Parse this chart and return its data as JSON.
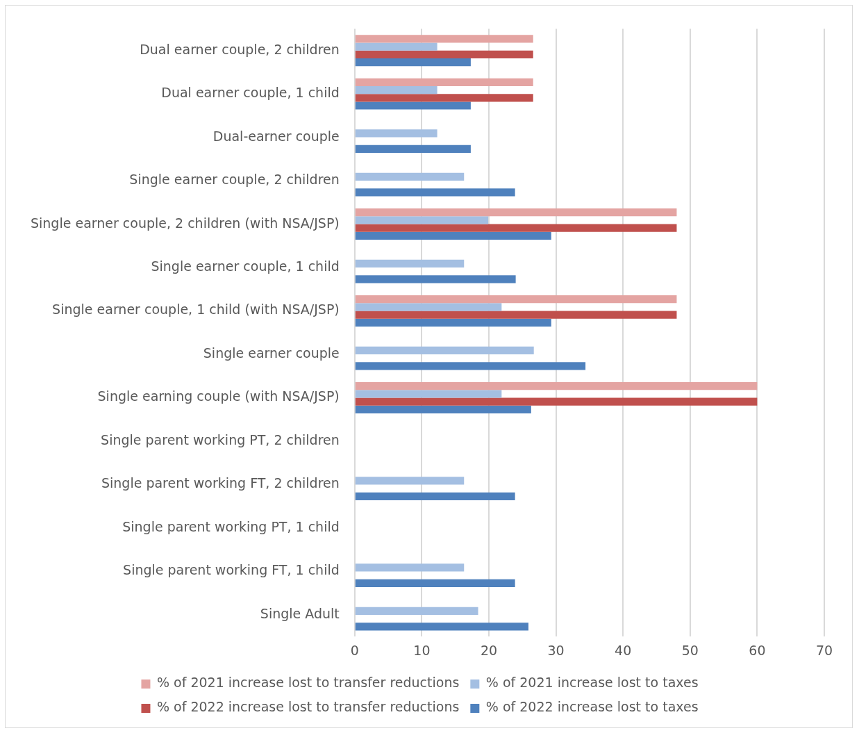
{
  "chart_data": {
    "type": "bar",
    "orientation": "horizontal",
    "categories": [
      "Dual earner couple, 2 children",
      "Dual earner couple, 1 child",
      "Dual-earner couple",
      "Single earner couple, 2 children",
      "Single earner couple, 2 children (with NSA/JSP)",
      "Single earner couple, 1 child",
      "Single earner couple, 1 child (with NSA/JSP)",
      "Single earner couple",
      "Single earning couple (with NSA/JSP)",
      "Single parent working PT, 2 children",
      "Single parent working FT, 2 children",
      "Single parent working PT, 1 child",
      "Single parent working FT, 1 child",
      "Single Adult"
    ],
    "series": [
      {
        "name": "% of 2021 increase lost to transfer reductions",
        "color": "#e4a4a2",
        "values": [
          26.6,
          26.6,
          null,
          null,
          48,
          null,
          48,
          null,
          60,
          null,
          null,
          null,
          null,
          null
        ]
      },
      {
        "name": "% of 2021 increase lost to taxes",
        "color": "#a4bfe2",
        "values": [
          12.3,
          12.3,
          12.3,
          16.3,
          19.9,
          16.3,
          21.9,
          26.7,
          21.9,
          null,
          16.3,
          null,
          16.3,
          18.4
        ]
      },
      {
        "name": "% of 2022 increase lost to transfer reductions",
        "color": "#c0504d",
        "values": [
          26.6,
          26.6,
          null,
          null,
          48,
          null,
          48,
          null,
          60,
          null,
          null,
          null,
          null,
          null
        ]
      },
      {
        "name": "% of 2022 increase lost to taxes",
        "color": "#4f81bd",
        "values": [
          17.3,
          17.3,
          17.3,
          23.9,
          29.3,
          24,
          29.3,
          34.4,
          26.3,
          null,
          23.9,
          null,
          23.9,
          25.9
        ]
      }
    ],
    "xlim": [
      0,
      70
    ],
    "xticks": [
      0,
      10,
      20,
      30,
      40,
      50,
      60,
      70
    ],
    "grid": "x",
    "legend": "bottom"
  }
}
